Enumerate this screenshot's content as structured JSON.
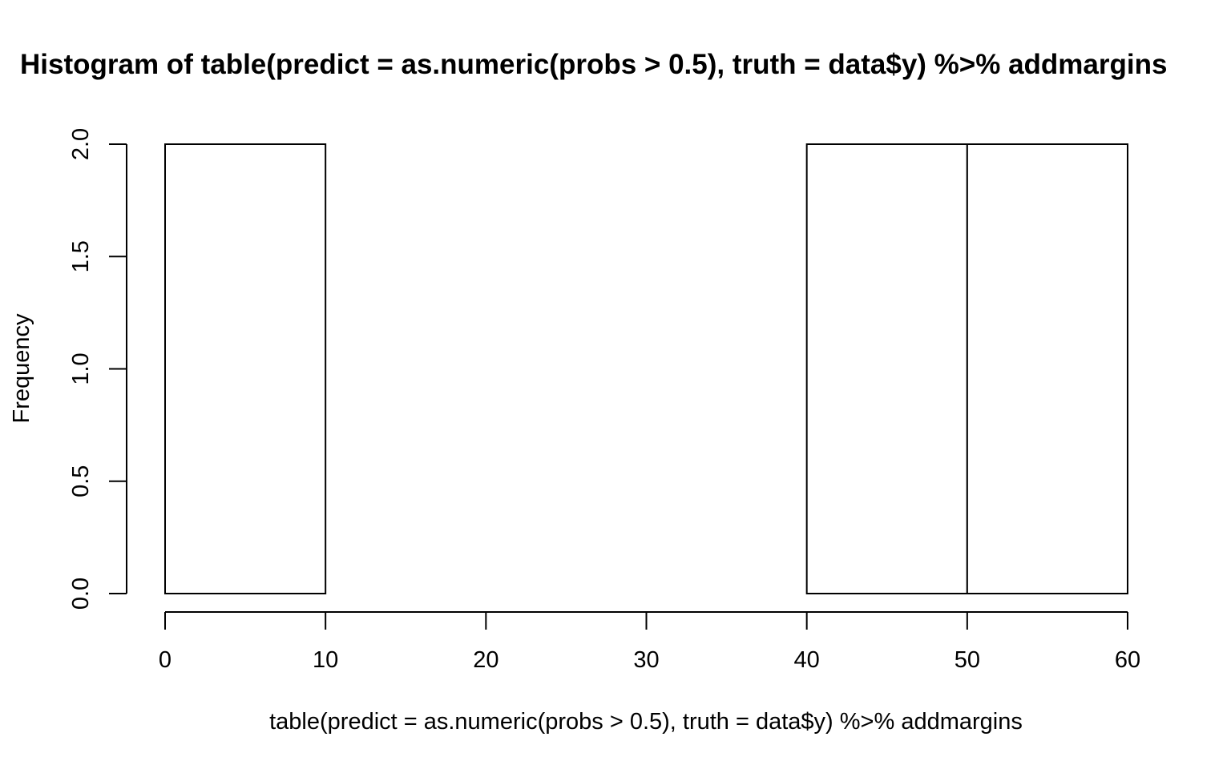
{
  "chart_data": {
    "type": "bar",
    "subtype": "histogram",
    "title": "Histogram of table(predict = as.numeric(probs > 0.5), truth = data$y) %>% addmargins",
    "xlabel": "table(predict = as.numeric(probs > 0.5), truth = data$y) %>% addmargins",
    "ylabel": "Frequency",
    "bins": [
      {
        "x0": 0,
        "x1": 10,
        "count": 2
      },
      {
        "x0": 10,
        "x1": 20,
        "count": 0
      },
      {
        "x0": 20,
        "x1": 30,
        "count": 0
      },
      {
        "x0": 30,
        "x1": 40,
        "count": 0
      },
      {
        "x0": 40,
        "x1": 50,
        "count": 2
      },
      {
        "x0": 50,
        "x1": 60,
        "count": 2
      }
    ],
    "xlim": [
      0,
      60
    ],
    "ylim": [
      0,
      2
    ],
    "x_ticks": [
      "0",
      "10",
      "20",
      "30",
      "40",
      "50",
      "60"
    ],
    "y_ticks": [
      "0.0",
      "0.5",
      "1.0",
      "1.5",
      "2.0"
    ],
    "bar_fill": "#ffffff",
    "bar_stroke": "#000000",
    "grid": false,
    "legend": "none"
  }
}
